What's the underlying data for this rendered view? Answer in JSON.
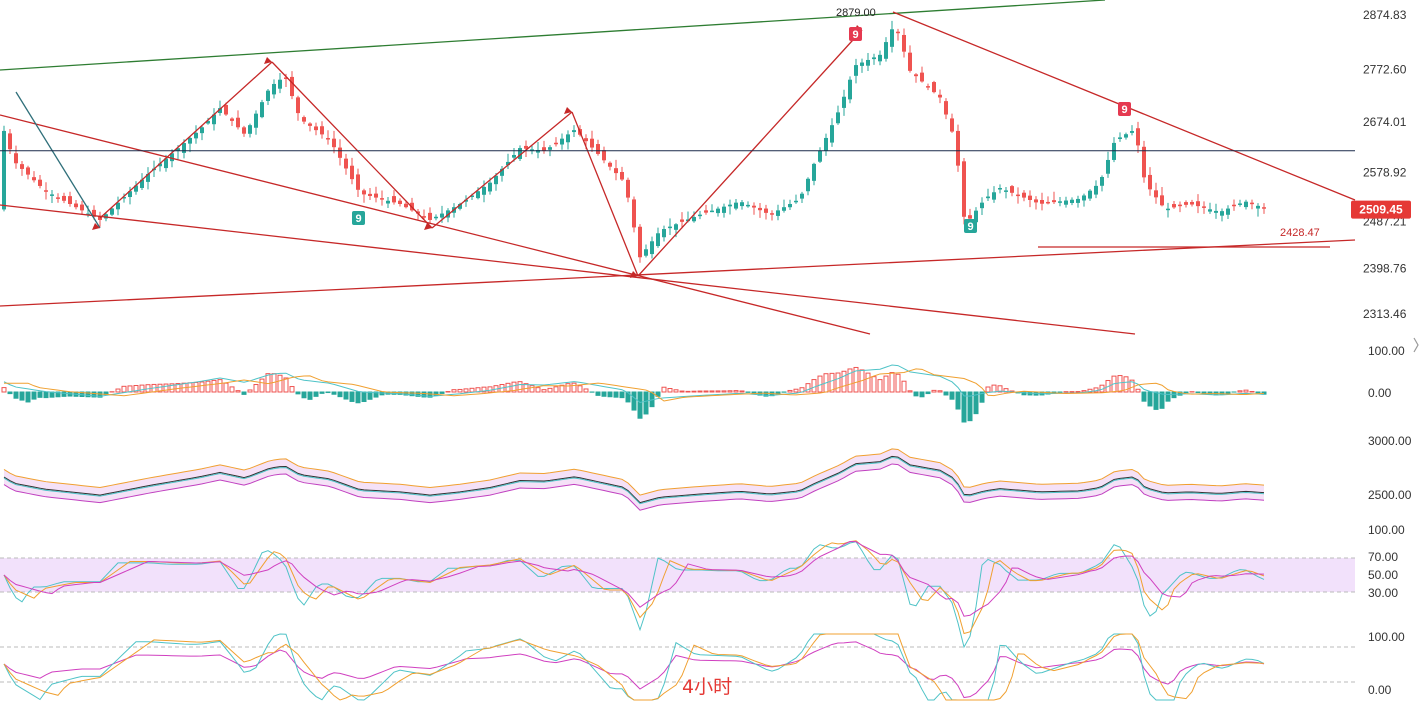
{
  "chart_data": {
    "type": "candlestick",
    "timeframe_label": "4小时",
    "price_axis": {
      "ticks": [
        "2874.83",
        "2772.60",
        "2674.01",
        "2578.92",
        "2487.21",
        "2398.76",
        "2313.46"
      ],
      "tick_values": [
        2874.83,
        2772.6,
        2674.01,
        2578.92,
        2487.21,
        2398.76,
        2313.46
      ],
      "range": [
        2288,
        2895
      ]
    },
    "current_price": {
      "label": "2509.45",
      "value": 2509.45,
      "color": "#e53935"
    },
    "annotations": {
      "high_label": "2879.00",
      "support_label": "2428.47",
      "horizontal_level": 2620
    },
    "td_markers": [
      {
        "text": "9",
        "kind": "buy",
        "color": "#26a69a"
      },
      {
        "text": "9",
        "kind": "sell",
        "color": "#e53950"
      },
      {
        "text": "9",
        "kind": "sell",
        "color": "#e53950"
      },
      {
        "text": "9",
        "kind": "buy",
        "color": "#26a69a"
      }
    ],
    "colors": {
      "up": "#26a69a",
      "down": "#ef5350",
      "trend": "#c62828",
      "channel": "#2e7d32"
    },
    "indicators": {
      "macd": {
        "ticks": [
          "100.00",
          "0.00"
        ]
      },
      "bollinger": {
        "ticks": [
          "3000.00",
          "2500.00"
        ]
      },
      "rsi": {
        "ticks": [
          "100.00",
          "70.00",
          "50.00",
          "30.00"
        ]
      },
      "kdj": {
        "ticks": [
          "100.00",
          "0.00"
        ]
      }
    }
  }
}
